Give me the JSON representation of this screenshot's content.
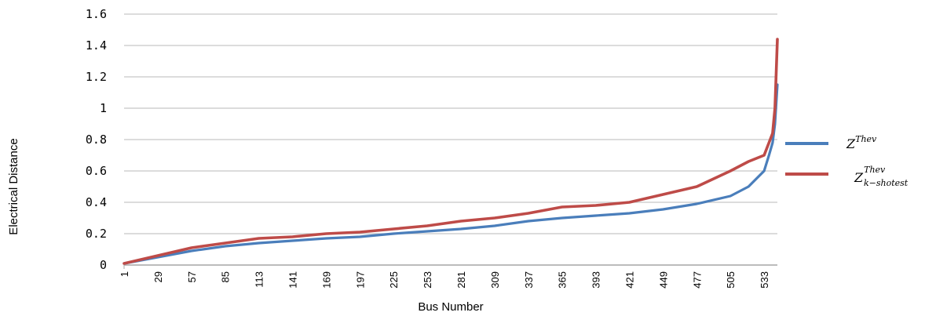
{
  "chart_data": {
    "type": "line",
    "xlabel": "Bus Number",
    "ylabel": "Electrical Distance",
    "ylim": [
      0,
      1.6
    ],
    "yticks": [
      "0",
      "0.2",
      "0.4",
      "0.6",
      "0.8",
      "1",
      "1.2",
      "1.4",
      "1.6"
    ],
    "xticks": [
      "1",
      "29",
      "57",
      "85",
      "113",
      "141",
      "169",
      "197",
      "225",
      "253",
      "281",
      "309",
      "337",
      "365",
      "393",
      "421",
      "449",
      "477",
      "505",
      "533"
    ],
    "xlim": [
      1,
      544
    ],
    "grid": "horizontal",
    "legend_position": "right",
    "colors": {
      "series1": "#4a7ebb",
      "series2": "#be4b48"
    },
    "series": [
      {
        "name": "Z^Thev",
        "legend_base": "Z",
        "legend_sup": "Thev",
        "legend_sub": "",
        "x": [
          1,
          29,
          57,
          85,
          113,
          141,
          169,
          197,
          225,
          253,
          281,
          309,
          337,
          365,
          393,
          421,
          449,
          477,
          505,
          520,
          533,
          537,
          540,
          542,
          544
        ],
        "y": [
          0.01,
          0.05,
          0.09,
          0.12,
          0.14,
          0.155,
          0.17,
          0.18,
          0.2,
          0.215,
          0.23,
          0.25,
          0.28,
          0.3,
          0.315,
          0.33,
          0.355,
          0.39,
          0.44,
          0.5,
          0.6,
          0.7,
          0.78,
          0.9,
          1.15
        ]
      },
      {
        "name": "Z_k-shotest^Thev",
        "legend_base": "Z",
        "legend_sup": "Thev",
        "legend_sub": "k−shotest",
        "x": [
          1,
          29,
          57,
          85,
          113,
          141,
          169,
          197,
          225,
          253,
          281,
          309,
          337,
          365,
          393,
          421,
          449,
          477,
          505,
          520,
          533,
          537,
          540,
          542,
          544
        ],
        "y": [
          0.01,
          0.06,
          0.11,
          0.14,
          0.17,
          0.18,
          0.2,
          0.21,
          0.23,
          0.25,
          0.28,
          0.3,
          0.33,
          0.37,
          0.38,
          0.4,
          0.45,
          0.5,
          0.6,
          0.66,
          0.7,
          0.78,
          0.84,
          1.0,
          1.44
        ]
      }
    ]
  }
}
